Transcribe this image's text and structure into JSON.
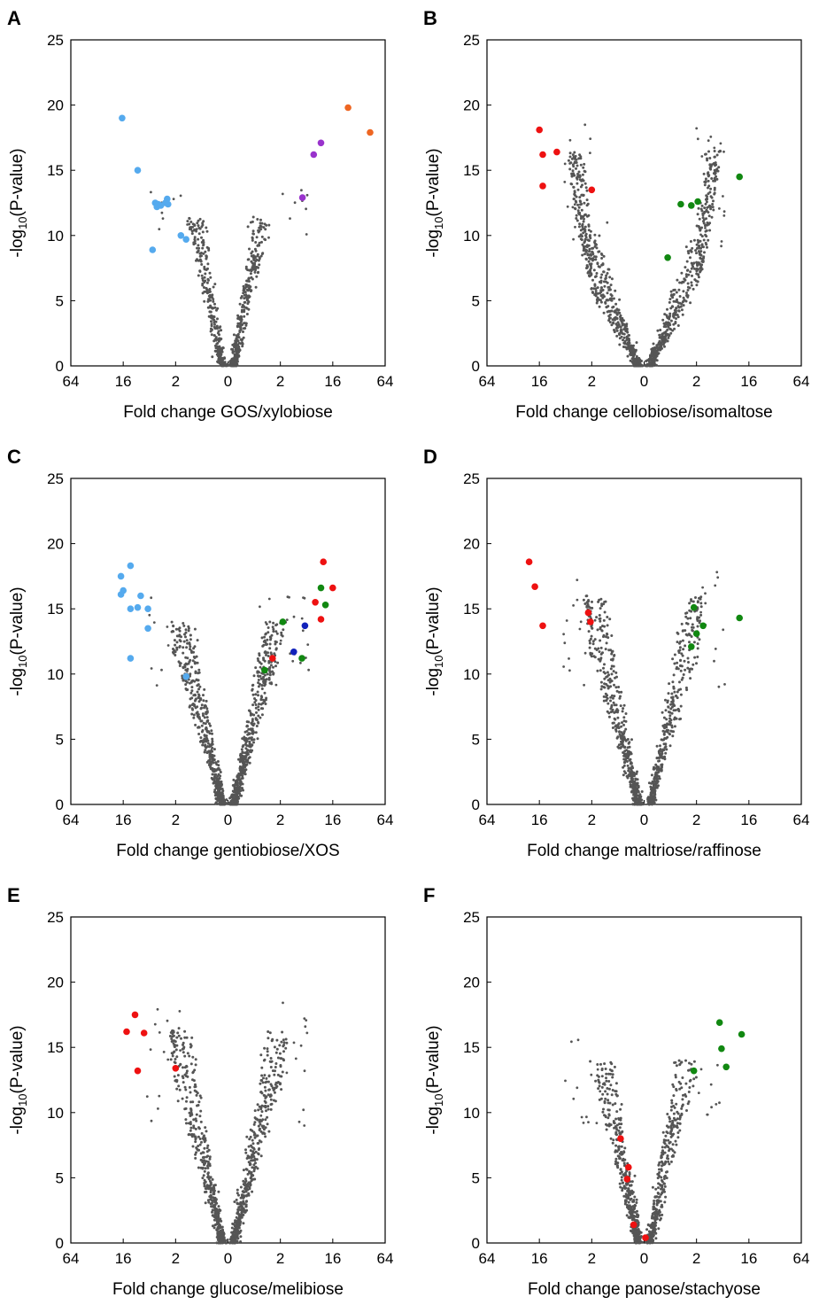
{
  "colors": {
    "background": "#dark-gray",
    "bg_dot": "#555555",
    "light_blue": "#55aaee",
    "orange": "#ee6622",
    "purple": "#9933cc",
    "red": "#ee1111",
    "green": "#118811",
    "blue": "#1122bb"
  },
  "common": {
    "ylabel": "-log10(P-value)",
    "ylim": [
      0,
      25
    ],
    "yticks": [
      "0",
      "5",
      "10",
      "15",
      "20",
      "25"
    ],
    "xticks": [
      "64",
      "16",
      "2",
      "0",
      "2",
      "16",
      "64"
    ],
    "axis_type": "symmetric log2 fold change (left: first sugar, right: second sugar)"
  },
  "chart_data": [
    {
      "panel": "A",
      "type": "scatter",
      "xlabel": "Fold change GOS/xylobiose",
      "series": [
        {
          "name": "",
          "color": "light_blue",
          "points": [
            [
              -16.5,
              19.0
            ],
            [
              -9,
              15.0
            ],
            [
              -4.5,
              12.5
            ],
            [
              -4.2,
              12.2
            ],
            [
              -4,
              12.4
            ],
            [
              -3,
              12.5
            ],
            [
              -2.8,
              12.8
            ],
            [
              -2.7,
              12.4
            ],
            [
              -3.6,
              12.3
            ],
            [
              -5,
              8.9
            ],
            [
              -1.8,
              10.0
            ],
            [
              -1.6,
              9.7
            ]
          ]
        },
        {
          "name": "",
          "color": "orange",
          "points": [
            [
              24,
              19.8
            ],
            [
              43,
              17.9
            ]
          ]
        },
        {
          "name": "",
          "color": "purple",
          "points": [
            [
              10,
              17.1
            ],
            [
              7.5,
              16.2
            ],
            [
              4.8,
              12.9
            ]
          ]
        }
      ]
    },
    {
      "panel": "B",
      "type": "scatter",
      "xlabel": "Fold change cellobiose/isomaltose",
      "series": [
        {
          "name": "",
          "color": "red",
          "points": [
            [
              -16,
              18.1
            ],
            [
              -14,
              16.2
            ],
            [
              -8,
              16.4
            ],
            [
              -14,
              13.8
            ],
            [
              -2,
              13.5
            ]
          ]
        },
        {
          "name": "",
          "color": "green",
          "points": [
            [
              11,
              14.5
            ],
            [
              1.4,
              12.4
            ],
            [
              2.1,
              12.6
            ],
            [
              1.8,
              12.3
            ],
            [
              0.9,
              8.3
            ]
          ]
        }
      ]
    },
    {
      "panel": "C",
      "type": "scatter",
      "xlabel": "Fold change gentiobiose/XOS",
      "series": [
        {
          "name": "",
          "color": "light_blue",
          "points": [
            [
              -17,
              17.5
            ],
            [
              -12,
              18.3
            ],
            [
              -16,
              16.4
            ],
            [
              -17,
              16.1
            ],
            [
              -12,
              15.0
            ],
            [
              -9,
              15.1
            ],
            [
              -8,
              16.0
            ],
            [
              -6,
              15.0
            ],
            [
              -6,
              13.5
            ],
            [
              -12,
              11.2
            ],
            [
              -1.6,
              9.8
            ]
          ]
        },
        {
          "name": "",
          "color": "red",
          "points": [
            [
              11,
              18.6
            ],
            [
              16,
              16.6
            ],
            [
              8,
              15.5
            ],
            [
              10,
              14.2
            ],
            [
              1.7,
              11.2
            ]
          ]
        },
        {
          "name": "",
          "color": "green",
          "points": [
            [
              10,
              16.6
            ],
            [
              12,
              15.3
            ],
            [
              2.2,
              14.0
            ],
            [
              4.7,
              11.2
            ],
            [
              1.4,
              10.3
            ]
          ]
        },
        {
          "name": "",
          "color": "blue",
          "points": [
            [
              5.3,
              13.7
            ],
            [
              3.4,
              11.7
            ]
          ]
        }
      ]
    },
    {
      "panel": "D",
      "type": "scatter",
      "xlabel": "Fold change maltriose/raffinose",
      "series": [
        {
          "name": "",
          "color": "red",
          "points": [
            [
              -21,
              18.6
            ],
            [
              -18,
              16.7
            ],
            [
              -14,
              13.7
            ],
            [
              -2.3,
              14.7
            ],
            [
              -2.1,
              14.0
            ]
          ]
        },
        {
          "name": "",
          "color": "green",
          "points": [
            [
              1.9,
              15.1
            ],
            [
              11,
              14.3
            ],
            [
              2.6,
              13.7
            ],
            [
              2.0,
              13.1
            ],
            [
              1.8,
              12.1
            ]
          ]
        }
      ]
    },
    {
      "panel": "E",
      "type": "scatter",
      "xlabel": "Fold change glucose/melibiose",
      "series": [
        {
          "name": "",
          "color": "red",
          "points": [
            [
              -10,
              17.5
            ],
            [
              -14,
              16.2
            ],
            [
              -7,
              16.1
            ],
            [
              -9,
              13.2
            ],
            [
              -2.0,
              13.4
            ]
          ]
        }
      ]
    },
    {
      "panel": "F",
      "type": "scatter",
      "xlabel": "Fold change panose/stachyose",
      "series": [
        {
          "name": "",
          "color": "green",
          "points": [
            [
              5,
              16.9
            ],
            [
              12,
              16.0
            ],
            [
              5.4,
              14.9
            ],
            [
              6.5,
              13.5
            ],
            [
              1.9,
              13.2
            ]
          ]
        },
        {
          "name": "",
          "color": "red",
          "points": [
            [
              -0.9,
              8.0
            ],
            [
              -0.6,
              5.8
            ],
            [
              -0.65,
              4.9
            ],
            [
              -0.4,
              1.4
            ],
            [
              0.05,
              0.4
            ]
          ]
        }
      ]
    }
  ],
  "panels_meta": [
    {
      "letter": "A",
      "vshape": {
        "maxY": 11.5,
        "maxX": 1.4,
        "n": 650,
        "skewR": 1.0,
        "extraPts": 20
      }
    },
    {
      "letter": "B",
      "vshape": {
        "maxY": 16.5,
        "maxX": 5.0,
        "n": 1100,
        "skewR": 1.0,
        "extraPts": 40
      }
    },
    {
      "letter": "C",
      "vshape": {
        "maxY": 14.0,
        "maxX": 2.2,
        "n": 1000,
        "skewR": 1.0,
        "extraPts": 30
      }
    },
    {
      "letter": "D",
      "vshape": {
        "maxY": 16.0,
        "maxX": 2.5,
        "n": 900,
        "skewR": 1.0,
        "extraPts": 30
      }
    },
    {
      "letter": "E",
      "vshape": {
        "maxY": 16.5,
        "maxX": 2.4,
        "n": 950,
        "skewR": 1.0,
        "extraPts": 30
      }
    },
    {
      "letter": "F",
      "vshape": {
        "maxY": 14.0,
        "maxX": 1.8,
        "n": 800,
        "skewR": 0.9,
        "extraPts": 25
      }
    }
  ]
}
